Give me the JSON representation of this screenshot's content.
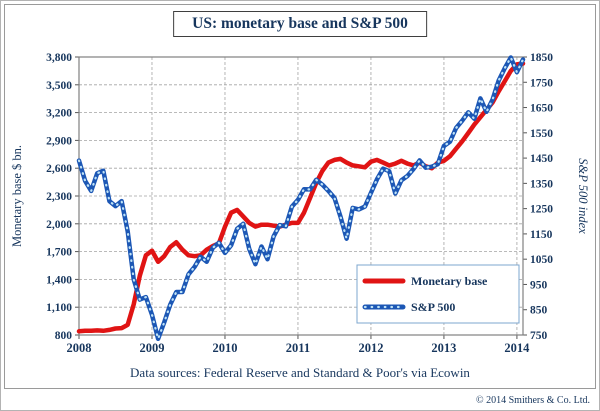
{
  "title": "US: monetary base and S&P 500",
  "footer": "Data sources: Federal Reserve and Standard & Poor's via Ecowin",
  "copyright": "© 2014 Smithers & Co. Ltd.",
  "colors": {
    "text_navy": "#17365d",
    "monetary_base_line": "#e01414",
    "sp500_line": "#1c57b5",
    "sp500_dots": "#bfe3f7",
    "grid": "#a3a3a3",
    "plot_border": "#808080",
    "legend_border": "#7da7cf"
  },
  "chart_data": {
    "type": "line",
    "title": "US: monetary base and S&P 500",
    "x_unit": "month",
    "x_start": "2008-01",
    "x_tick_labels": [
      "2008",
      "2009",
      "2010",
      "2011",
      "2012",
      "2013",
      "2014"
    ],
    "grid": true,
    "legend_position": "inside-bottom-right",
    "left_axis": {
      "label": "Monetary base $ bn.",
      "min": 800,
      "max": 3800,
      "step": 300
    },
    "right_axis": {
      "label": "S&P 500 index",
      "min": 750,
      "max": 1850,
      "step": 100
    },
    "series": [
      {
        "name": "Monetary base",
        "axis": "left",
        "color": "#e01414",
        "values": [
          840,
          845,
          845,
          850,
          845,
          855,
          870,
          875,
          910,
          1130,
          1440,
          1660,
          1710,
          1590,
          1650,
          1750,
          1800,
          1720,
          1660,
          1650,
          1660,
          1720,
          1760,
          1790,
          1970,
          2120,
          2150,
          2080,
          2010,
          1970,
          1990,
          1990,
          1980,
          1970,
          1990,
          2010,
          2010,
          2120,
          2280,
          2440,
          2570,
          2660,
          2690,
          2700,
          2660,
          2630,
          2620,
          2610,
          2670,
          2690,
          2660,
          2630,
          2650,
          2680,
          2650,
          2630,
          2660,
          2620,
          2600,
          2660,
          2680,
          2730,
          2810,
          2890,
          2980,
          3070,
          3150,
          3230,
          3310,
          3430,
          3540,
          3650,
          3720,
          3730
        ]
      },
      {
        "name": "S&P 500",
        "axis": "right",
        "color": "#1c57b5",
        "dot_color": "#bfe3f7",
        "values": [
          1440,
          1360,
          1320,
          1390,
          1400,
          1280,
          1260,
          1280,
          1160,
          970,
          890,
          900,
          830,
          735,
          800,
          870,
          920,
          920,
          990,
          1020,
          1060,
          1040,
          1095,
          1115,
          1075,
          1105,
          1170,
          1190,
          1090,
          1030,
          1100,
          1050,
          1140,
          1185,
          1180,
          1258,
          1285,
          1327,
          1326,
          1364,
          1345,
          1320,
          1292,
          1218,
          1131,
          1253,
          1247,
          1258,
          1312,
          1366,
          1408,
          1398,
          1310,
          1362,
          1379,
          1407,
          1441,
          1412,
          1416,
          1426,
          1498,
          1515,
          1569,
          1598,
          1631,
          1606,
          1686,
          1633,
          1682,
          1757,
          1806,
          1848,
          1790,
          1840
        ]
      }
    ]
  }
}
